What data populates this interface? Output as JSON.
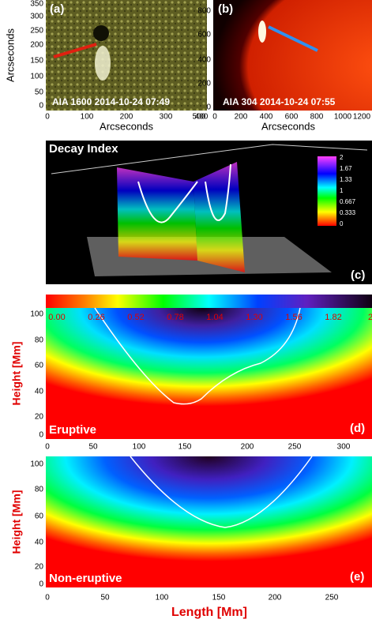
{
  "panels": [
    {
      "label": "(a)",
      "caption": "AIA 1600 2014-10-24 07:49",
      "yaxis": "Arcseconds",
      "xaxis": "Arcseconds",
      "yticks": [
        "350",
        "300",
        "250",
        "200",
        "150",
        "100",
        "50",
        "0"
      ],
      "xticks": [
        "0",
        "100",
        "200",
        "300",
        "400",
        "500"
      ]
    },
    {
      "label": "(b)",
      "caption": "AIA 304 2014-10-24 07:55",
      "xaxis": "Arcseconds",
      "yticks": [
        "800",
        "600",
        "400",
        "200",
        "0"
      ],
      "xticks": [
        "0",
        "200",
        "400",
        "600",
        "800",
        "1000",
        "1200"
      ]
    },
    {
      "label": "(c)",
      "title": "Decay Index",
      "colorbar": [
        "2",
        "1.67",
        "1.33",
        "1",
        "0.667",
        "0.333",
        "0"
      ]
    },
    {
      "label": "(d)",
      "caption": "Eruptive",
      "yaxis": "Height [Mm]",
      "yticks": [
        "100",
        "80",
        "60",
        "40",
        "20",
        "0"
      ],
      "xticks": [
        "0",
        "50",
        "100",
        "150",
        "200",
        "250",
        "300"
      ]
    },
    {
      "label": "(e)",
      "caption": "Non-eruptive",
      "yaxis": "Height [Mm]",
      "xaxis": "Length [Mm]",
      "yticks": [
        "100",
        "80",
        "60",
        "40",
        "20",
        "0"
      ],
      "xticks": [
        "0",
        "50",
        "100",
        "150",
        "200",
        "250"
      ]
    }
  ],
  "colorbar": [
    "0.00",
    "0.26",
    "0.52",
    "0.78",
    "1.04",
    "1.30",
    "1.56",
    "1.82",
    "2.0"
  ]
}
